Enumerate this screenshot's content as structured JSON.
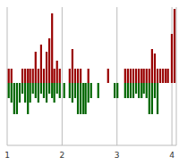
{
  "chart_data": {
    "type": "bar",
    "stacked": true,
    "grid": true,
    "tick_labels": "x",
    "x": [
      1.03,
      1.08,
      1.13,
      1.18,
      1.23,
      1.28,
      1.33,
      1.38,
      1.42,
      1.47,
      1.52,
      1.57,
      1.62,
      1.67,
      1.72,
      1.77,
      1.82,
      1.86,
      1.91,
      1.96,
      2.04,
      2.14,
      2.19,
      2.24,
      2.29,
      2.34,
      2.39,
      2.43,
      2.48,
      2.53,
      2.66,
      2.84,
      2.96,
      3.01,
      3.15,
      3.2,
      3.25,
      3.3,
      3.35,
      3.4,
      3.45,
      3.49,
      3.54,
      3.59,
      3.64,
      3.69,
      3.74,
      3.79,
      3.84,
      3.89,
      3.93,
      4.0,
      4.05
    ],
    "series": [
      {
        "color": "#990000",
        "values": [
          16,
          16,
          0,
          0,
          0,
          16,
          16,
          16,
          16,
          16,
          35,
          16,
          43,
          16,
          35,
          50,
          78,
          16,
          25,
          16,
          0,
          16,
          38,
          16,
          16,
          16,
          0,
          0,
          16,
          0,
          0,
          16,
          0,
          0,
          16,
          16,
          16,
          16,
          16,
          16,
          16,
          16,
          16,
          16,
          38,
          33,
          16,
          16,
          16,
          16,
          16,
          55,
          83
        ]
      },
      {
        "color": "#006600",
        "values": [
          -17,
          -22,
          -35,
          -35,
          -22,
          -12,
          -22,
          -35,
          -22,
          -12,
          -17,
          -22,
          -12,
          -17,
          -22,
          -12,
          -17,
          -22,
          -12,
          -17,
          -17,
          -17,
          -22,
          -17,
          -35,
          -35,
          -35,
          -35,
          -22,
          -17,
          -17,
          0,
          -17,
          -17,
          -17,
          -17,
          -17,
          -17,
          -12,
          -17,
          -17,
          -12,
          -17,
          -35,
          -35,
          -17,
          -35,
          0,
          0,
          0,
          0,
          0,
          0
        ]
      }
    ],
    "xlim": [
      1,
      4.08
    ],
    "xticks": [
      1,
      2,
      3,
      4
    ],
    "ylim": [
      -70,
      85
    ]
  }
}
